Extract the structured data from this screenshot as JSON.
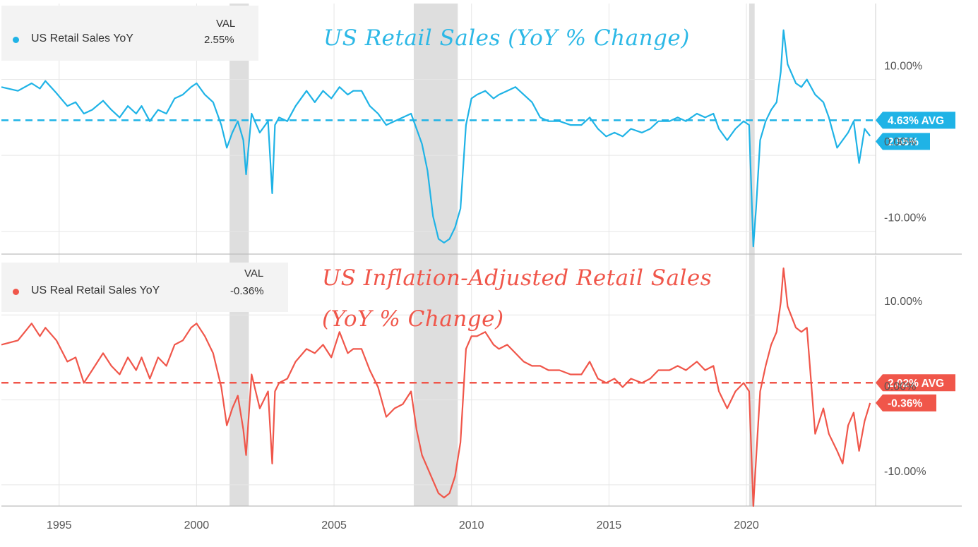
{
  "colors": {
    "top": "#1fb3e6",
    "bottom": "#f0564a",
    "recession": "#dcdcdc",
    "grid": "#e6e6e6",
    "axis_text": "#555555"
  },
  "top_panel": {
    "legend": {
      "name": "US Retail Sales YoY",
      "val_header": "VAL",
      "value": "2.55%"
    },
    "title": "US Retail Sales (YoY % Change)",
    "avg_label": "4.63% AVG",
    "last_label": "2.55%"
  },
  "bottom_panel": {
    "legend": {
      "name": "US Real Retail Sales YoY",
      "val_header": "VAL",
      "value": "-0.36%"
    },
    "title_line1": "US Inflation-Adjusted Retail Sales",
    "title_line2": "(YoY % Change)",
    "avg_label": "2.02% AVG",
    "last_label": "-0.36%"
  },
  "chart_data": [
    {
      "type": "line",
      "title": "US Retail Sales (YoY % Change)",
      "series_name": "US Retail Sales YoY",
      "x": [
        1992.9,
        1993.5,
        1994.0,
        1994.3,
        1994.5,
        1994.9,
        1995.3,
        1995.6,
        1995.9,
        1996.2,
        1996.6,
        1996.9,
        1997.2,
        1997.5,
        1997.8,
        1998.0,
        1998.3,
        1998.6,
        1998.9,
        1999.2,
        1999.5,
        1999.8,
        2000.0,
        2000.3,
        2000.6,
        2000.9,
        2001.1,
        2001.3,
        2001.5,
        2001.7,
        2001.8,
        2002.0,
        2002.3,
        2002.6,
        2002.75,
        2002.85,
        2003.0,
        2003.3,
        2003.6,
        2004.0,
        2004.3,
        2004.6,
        2004.9,
        2005.2,
        2005.5,
        2005.7,
        2006.0,
        2006.3,
        2006.6,
        2006.9,
        2007.2,
        2007.5,
        2007.8,
        2008.0,
        2008.2,
        2008.4,
        2008.6,
        2008.8,
        2009.0,
        2009.2,
        2009.4,
        2009.6,
        2009.8,
        2010.0,
        2010.2,
        2010.5,
        2010.8,
        2011.0,
        2011.3,
        2011.6,
        2011.9,
        2012.2,
        2012.5,
        2012.8,
        2013.2,
        2013.6,
        2014.0,
        2014.3,
        2014.6,
        2014.9,
        2015.2,
        2015.5,
        2015.8,
        2016.2,
        2016.5,
        2016.8,
        2017.2,
        2017.5,
        2017.8,
        2018.2,
        2018.5,
        2018.8,
        2019.0,
        2019.3,
        2019.6,
        2019.9,
        2020.1,
        2020.25,
        2020.35,
        2020.5,
        2020.7,
        2020.9,
        2021.1,
        2021.25,
        2021.35,
        2021.5,
        2021.8,
        2022.0,
        2022.2,
        2022.5,
        2022.8,
        2023.0,
        2023.3,
        2023.5,
        2023.7,
        2023.9,
        2024.1,
        2024.3,
        2024.5
      ],
      "y": [
        9.0,
        8.5,
        9.5,
        8.8,
        9.8,
        8.2,
        6.5,
        7.0,
        5.5,
        6.0,
        7.2,
        6.0,
        5.0,
        6.5,
        5.5,
        6.5,
        4.5,
        6.0,
        5.5,
        7.5,
        8.0,
        9.0,
        9.5,
        8.0,
        7.0,
        4.0,
        1.0,
        3.0,
        4.5,
        2.0,
        -2.5,
        5.5,
        3.0,
        4.5,
        -5.0,
        4.0,
        5.0,
        4.5,
        6.5,
        8.5,
        7.0,
        8.5,
        7.5,
        9.0,
        8.0,
        8.5,
        8.5,
        6.5,
        5.5,
        4.0,
        4.5,
        5.0,
        5.5,
        3.5,
        1.5,
        -2.0,
        -8.0,
        -11.0,
        -11.5,
        -11.0,
        -9.5,
        -7.0,
        4.0,
        7.5,
        8.0,
        8.5,
        7.5,
        8.0,
        8.5,
        9.0,
        8.0,
        7.0,
        5.0,
        4.5,
        4.5,
        4.0,
        4.0,
        5.0,
        3.5,
        2.5,
        3.0,
        2.5,
        3.5,
        3.0,
        3.5,
        4.5,
        4.5,
        5.0,
        4.5,
        5.5,
        5.0,
        5.5,
        3.5,
        2.0,
        3.5,
        4.5,
        4.0,
        -12.0,
        -7.0,
        2.0,
        4.5,
        6.0,
        7.0,
        11.0,
        16.5,
        12.0,
        9.5,
        9.0,
        10.0,
        8.0,
        7.0,
        5.0,
        1.0,
        2.0,
        3.0,
        4.5,
        -1.0,
        3.5,
        2.55
      ]
    },
    {
      "type": "line",
      "title": "US Inflation-Adjusted Retail Sales (YoY % Change)",
      "series_name": "US Real Retail Sales YoY",
      "x": [
        1992.9,
        1993.5,
        1994.0,
        1994.3,
        1994.5,
        1994.9,
        1995.3,
        1995.6,
        1995.9,
        1996.2,
        1996.6,
        1996.9,
        1997.2,
        1997.5,
        1997.8,
        1998.0,
        1998.3,
        1998.6,
        1998.9,
        1999.2,
        1999.5,
        1999.8,
        2000.0,
        2000.3,
        2000.6,
        2000.9,
        2001.1,
        2001.3,
        2001.5,
        2001.7,
        2001.8,
        2002.0,
        2002.3,
        2002.6,
        2002.75,
        2002.85,
        2003.0,
        2003.3,
        2003.6,
        2004.0,
        2004.3,
        2004.6,
        2004.9,
        2005.2,
        2005.5,
        2005.7,
        2006.0,
        2006.3,
        2006.6,
        2006.9,
        2007.2,
        2007.5,
        2007.8,
        2008.0,
        2008.2,
        2008.4,
        2008.6,
        2008.8,
        2009.0,
        2009.2,
        2009.4,
        2009.6,
        2009.8,
        2010.0,
        2010.2,
        2010.5,
        2010.8,
        2011.0,
        2011.3,
        2011.6,
        2011.9,
        2012.2,
        2012.5,
        2012.8,
        2013.2,
        2013.6,
        2014.0,
        2014.3,
        2014.6,
        2014.9,
        2015.2,
        2015.5,
        2015.8,
        2016.2,
        2016.5,
        2016.8,
        2017.2,
        2017.5,
        2017.8,
        2018.2,
        2018.5,
        2018.8,
        2019.0,
        2019.3,
        2019.6,
        2019.9,
        2020.1,
        2020.25,
        2020.35,
        2020.5,
        2020.7,
        2020.9,
        2021.1,
        2021.25,
        2021.35,
        2021.5,
        2021.8,
        2022.0,
        2022.2,
        2022.5,
        2022.8,
        2023.0,
        2023.3,
        2023.5,
        2023.7,
        2023.9,
        2024.1,
        2024.3,
        2024.5
      ],
      "y": [
        6.5,
        7.0,
        9.0,
        7.5,
        8.5,
        7.0,
        4.5,
        5.0,
        2.0,
        3.5,
        5.5,
        4.0,
        3.0,
        5.0,
        3.5,
        5.0,
        2.5,
        5.0,
        4.0,
        6.5,
        7.0,
        8.5,
        9.0,
        7.5,
        5.5,
        1.5,
        -3.0,
        -1.0,
        0.5,
        -3.5,
        -6.5,
        3.0,
        -1.0,
        1.0,
        -7.5,
        1.0,
        2.0,
        2.5,
        4.5,
        6.0,
        5.5,
        6.5,
        5.0,
        8.0,
        5.5,
        6.0,
        6.0,
        3.5,
        1.5,
        -2.0,
        -1.0,
        -0.5,
        1.0,
        -3.5,
        -6.5,
        -8.0,
        -9.5,
        -11.0,
        -11.5,
        -11.0,
        -9.0,
        -5.0,
        6.0,
        7.5,
        7.5,
        8.0,
        6.5,
        6.0,
        6.5,
        5.5,
        4.5,
        4.0,
        4.0,
        3.5,
        3.5,
        3.0,
        3.0,
        4.5,
        2.5,
        2.0,
        2.5,
        1.5,
        2.5,
        2.0,
        2.5,
        3.5,
        3.5,
        4.0,
        3.5,
        4.5,
        3.5,
        4.0,
        1.0,
        -1.0,
        1.0,
        2.0,
        1.0,
        -12.5,
        -7.0,
        1.0,
        4.0,
        6.5,
        8.0,
        11.5,
        15.5,
        11.0,
        8.5,
        8.0,
        8.5,
        -4.0,
        -1.0,
        -4.0,
        -6.0,
        -7.5,
        -3.0,
        -1.5,
        -6.0,
        -2.5,
        -0.36
      ]
    }
  ],
  "shared": {
    "x_ticks": [
      "1995",
      "2000",
      "2005",
      "2010",
      "2015",
      "2020"
    ],
    "x_tick_values": [
      1995,
      2000,
      2005,
      2010,
      2015,
      2020
    ],
    "x_range": [
      1992.9,
      2024.7
    ],
    "y_ticks_top": [
      "10.00%",
      "0.00%",
      "-10.00%"
    ],
    "y_ticks_bottom": [
      "10.00%",
      "0.00%",
      "-10.00%"
    ],
    "y_tick_values": [
      10,
      0,
      -10
    ],
    "top_avg": 4.63,
    "bottom_avg": 2.02,
    "top_ylim": [
      -13,
      20
    ],
    "bottom_ylim": [
      -12.5,
      17
    ],
    "recessions": [
      [
        2001.2,
        2001.9
      ],
      [
        2007.9,
        2009.5
      ],
      [
        2020.1,
        2020.3
      ]
    ]
  }
}
